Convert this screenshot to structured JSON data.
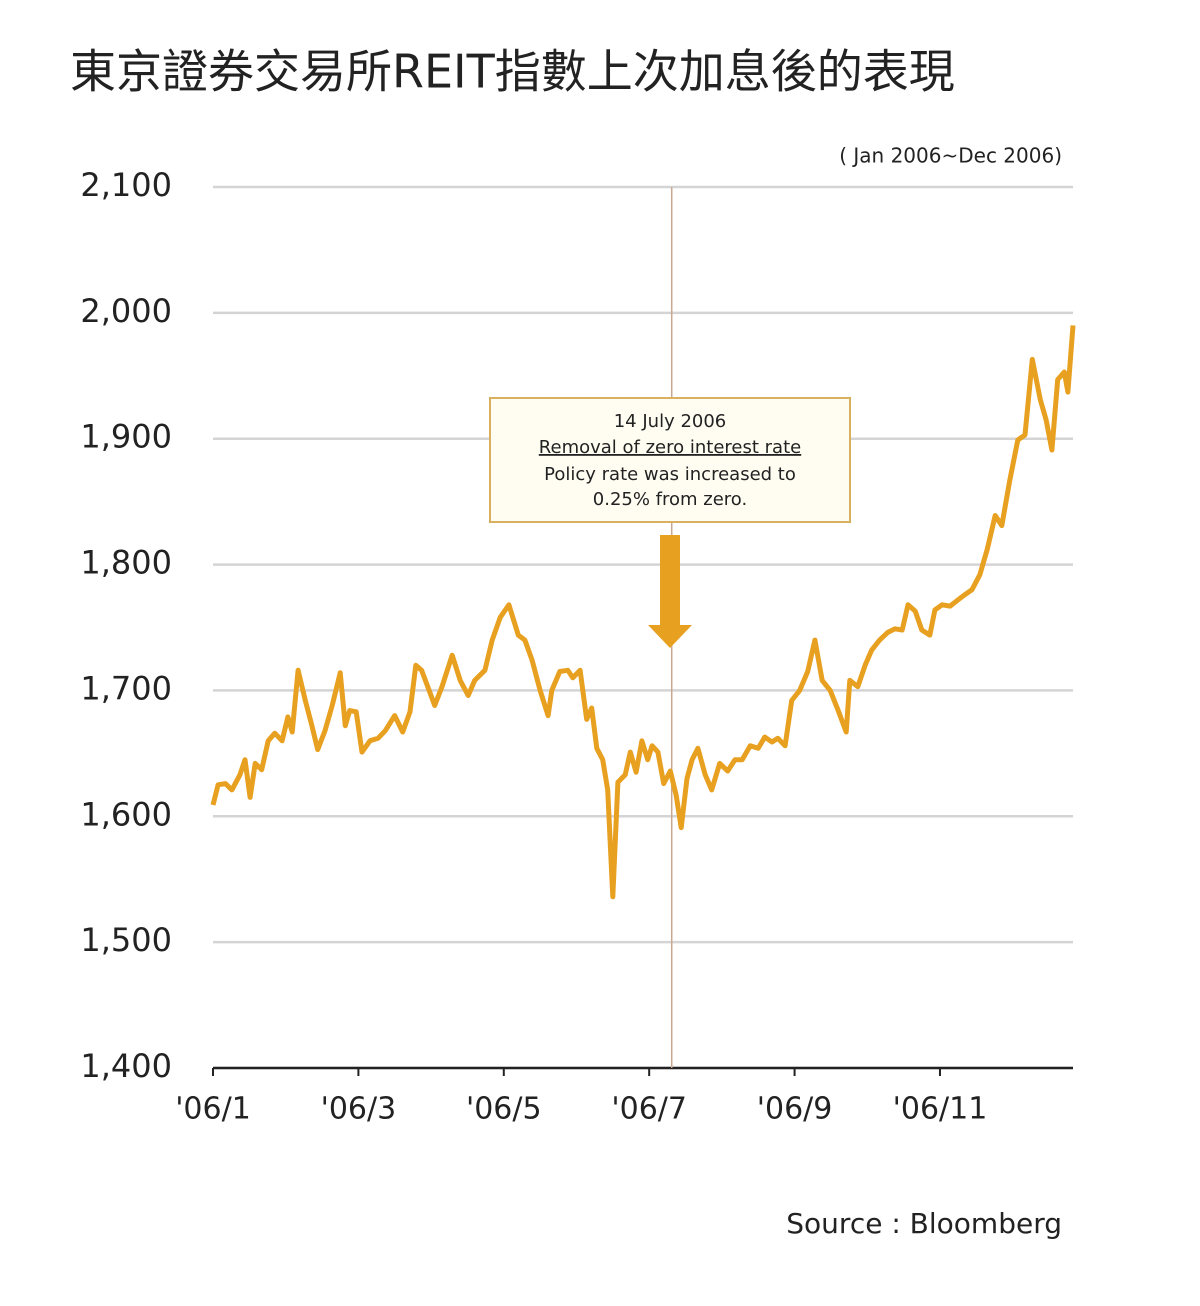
{
  "chart_data": {
    "type": "line",
    "title": "東京證券交易所REIT指數上次加息後的表現",
    "subtitle": "( Jan 2006~Dec 2006)",
    "source": "Source : Bloomberg",
    "color": "#e8a020",
    "x": [
      1.0,
      1.07,
      1.17,
      1.26,
      1.37,
      1.44,
      1.51,
      1.58,
      1.67,
      1.76,
      1.85,
      1.95,
      2.03,
      2.09,
      2.17,
      2.27,
      2.36,
      2.44,
      2.54,
      2.64,
      2.75,
      2.82,
      2.88,
      2.97,
      3.05,
      3.16,
      3.27,
      3.37,
      3.5,
      3.61,
      3.71,
      3.79,
      3.87,
      3.96,
      4.05,
      4.15,
      4.29,
      4.4,
      4.51,
      4.6,
      4.74,
      4.84,
      4.95,
      5.07,
      5.2,
      5.29,
      5.39,
      5.5,
      5.61,
      5.66,
      5.77,
      5.88,
      5.95,
      6.05,
      6.14,
      6.21,
      6.28,
      6.36,
      6.43,
      6.5,
      6.57,
      6.67,
      6.74,
      6.82,
      6.9,
      6.98,
      7.04,
      7.12,
      7.2,
      7.29,
      7.37,
      7.44,
      7.52,
      7.59,
      7.67,
      7.77,
      7.86,
      7.97,
      8.08,
      8.18,
      8.28,
      8.39,
      8.5,
      8.59,
      8.69,
      8.77,
      8.87,
      8.96,
      9.07,
      9.18,
      9.28,
      9.38,
      9.49,
      9.6,
      9.71,
      9.76,
      9.87,
      9.97,
      10.06,
      10.17,
      10.28,
      10.38,
      10.48,
      10.56,
      10.66,
      10.75,
      10.86,
      10.93,
      11.03,
      11.14,
      11.25,
      11.34,
      11.44,
      11.55,
      11.65,
      11.76,
      11.85,
      11.96,
      12.07,
      12.17,
      12.27,
      12.38,
      12.46,
      12.54,
      12.62,
      12.71,
      12.76,
      12.83
    ],
    "values": [
      1609,
      1625,
      1626,
      1621,
      1633,
      1645,
      1615,
      1642,
      1637,
      1660,
      1666,
      1660,
      1679,
      1667,
      1716,
      1692,
      1672,
      1653,
      1668,
      1688,
      1714,
      1672,
      1684,
      1683,
      1651,
      1660,
      1662,
      1668,
      1680,
      1667,
      1683,
      1720,
      1716,
      1702,
      1688,
      1703,
      1728,
      1708,
      1696,
      1708,
      1716,
      1740,
      1758,
      1768,
      1744,
      1740,
      1724,
      1700,
      1680,
      1700,
      1715,
      1716,
      1710,
      1716,
      1677,
      1686,
      1654,
      1645,
      1621,
      1536,
      1627,
      1633,
      1651,
      1635,
      1660,
      1645,
      1656,
      1651,
      1626,
      1636,
      1617,
      1591,
      1630,
      1645,
      1654,
      1633,
      1621,
      1642,
      1636,
      1645,
      1645,
      1656,
      1654,
      1663,
      1659,
      1662,
      1656,
      1692,
      1700,
      1715,
      1740,
      1708,
      1700,
      1684,
      1667,
      1708,
      1703,
      1720,
      1732,
      1740,
      1746,
      1749,
      1748,
      1768,
      1763,
      1748,
      1744,
      1764,
      1768,
      1767,
      1772,
      1776,
      1780,
      1792,
      1812,
      1839,
      1831,
      1867,
      1899,
      1903,
      1963,
      1931,
      1915,
      1891,
      1947,
      1953,
      1937,
      1990
    ],
    "xlim": [
      1,
      12.83
    ],
    "xticks": [
      {
        "value": 1,
        "label": "'06/1"
      },
      {
        "value": 3,
        "label": "'06/3"
      },
      {
        "value": 5,
        "label": "'06/5"
      },
      {
        "value": 7,
        "label": "'06/7"
      },
      {
        "value": 9,
        "label": "'06/9"
      },
      {
        "value": 11,
        "label": "'06/11"
      }
    ],
    "ylim": [
      1400,
      2100
    ],
    "yticks": [
      {
        "value": 1400,
        "label": "1,400"
      },
      {
        "value": 1500,
        "label": "1,500"
      },
      {
        "value": 1600,
        "label": "1,600"
      },
      {
        "value": 1700,
        "label": "1,700"
      },
      {
        "value": 1800,
        "label": "1,800"
      },
      {
        "value": 1900,
        "label": "1,900"
      },
      {
        "value": 2000,
        "label": "2,000"
      },
      {
        "value": 2100,
        "label": "2,100"
      }
    ],
    "grid": true,
    "annotation": {
      "x": 7.31,
      "texts": [
        "14 July 2006",
        "Removal of zero interest rate",
        "Policy rate was increased to",
        "0.25% from zero."
      ]
    }
  }
}
